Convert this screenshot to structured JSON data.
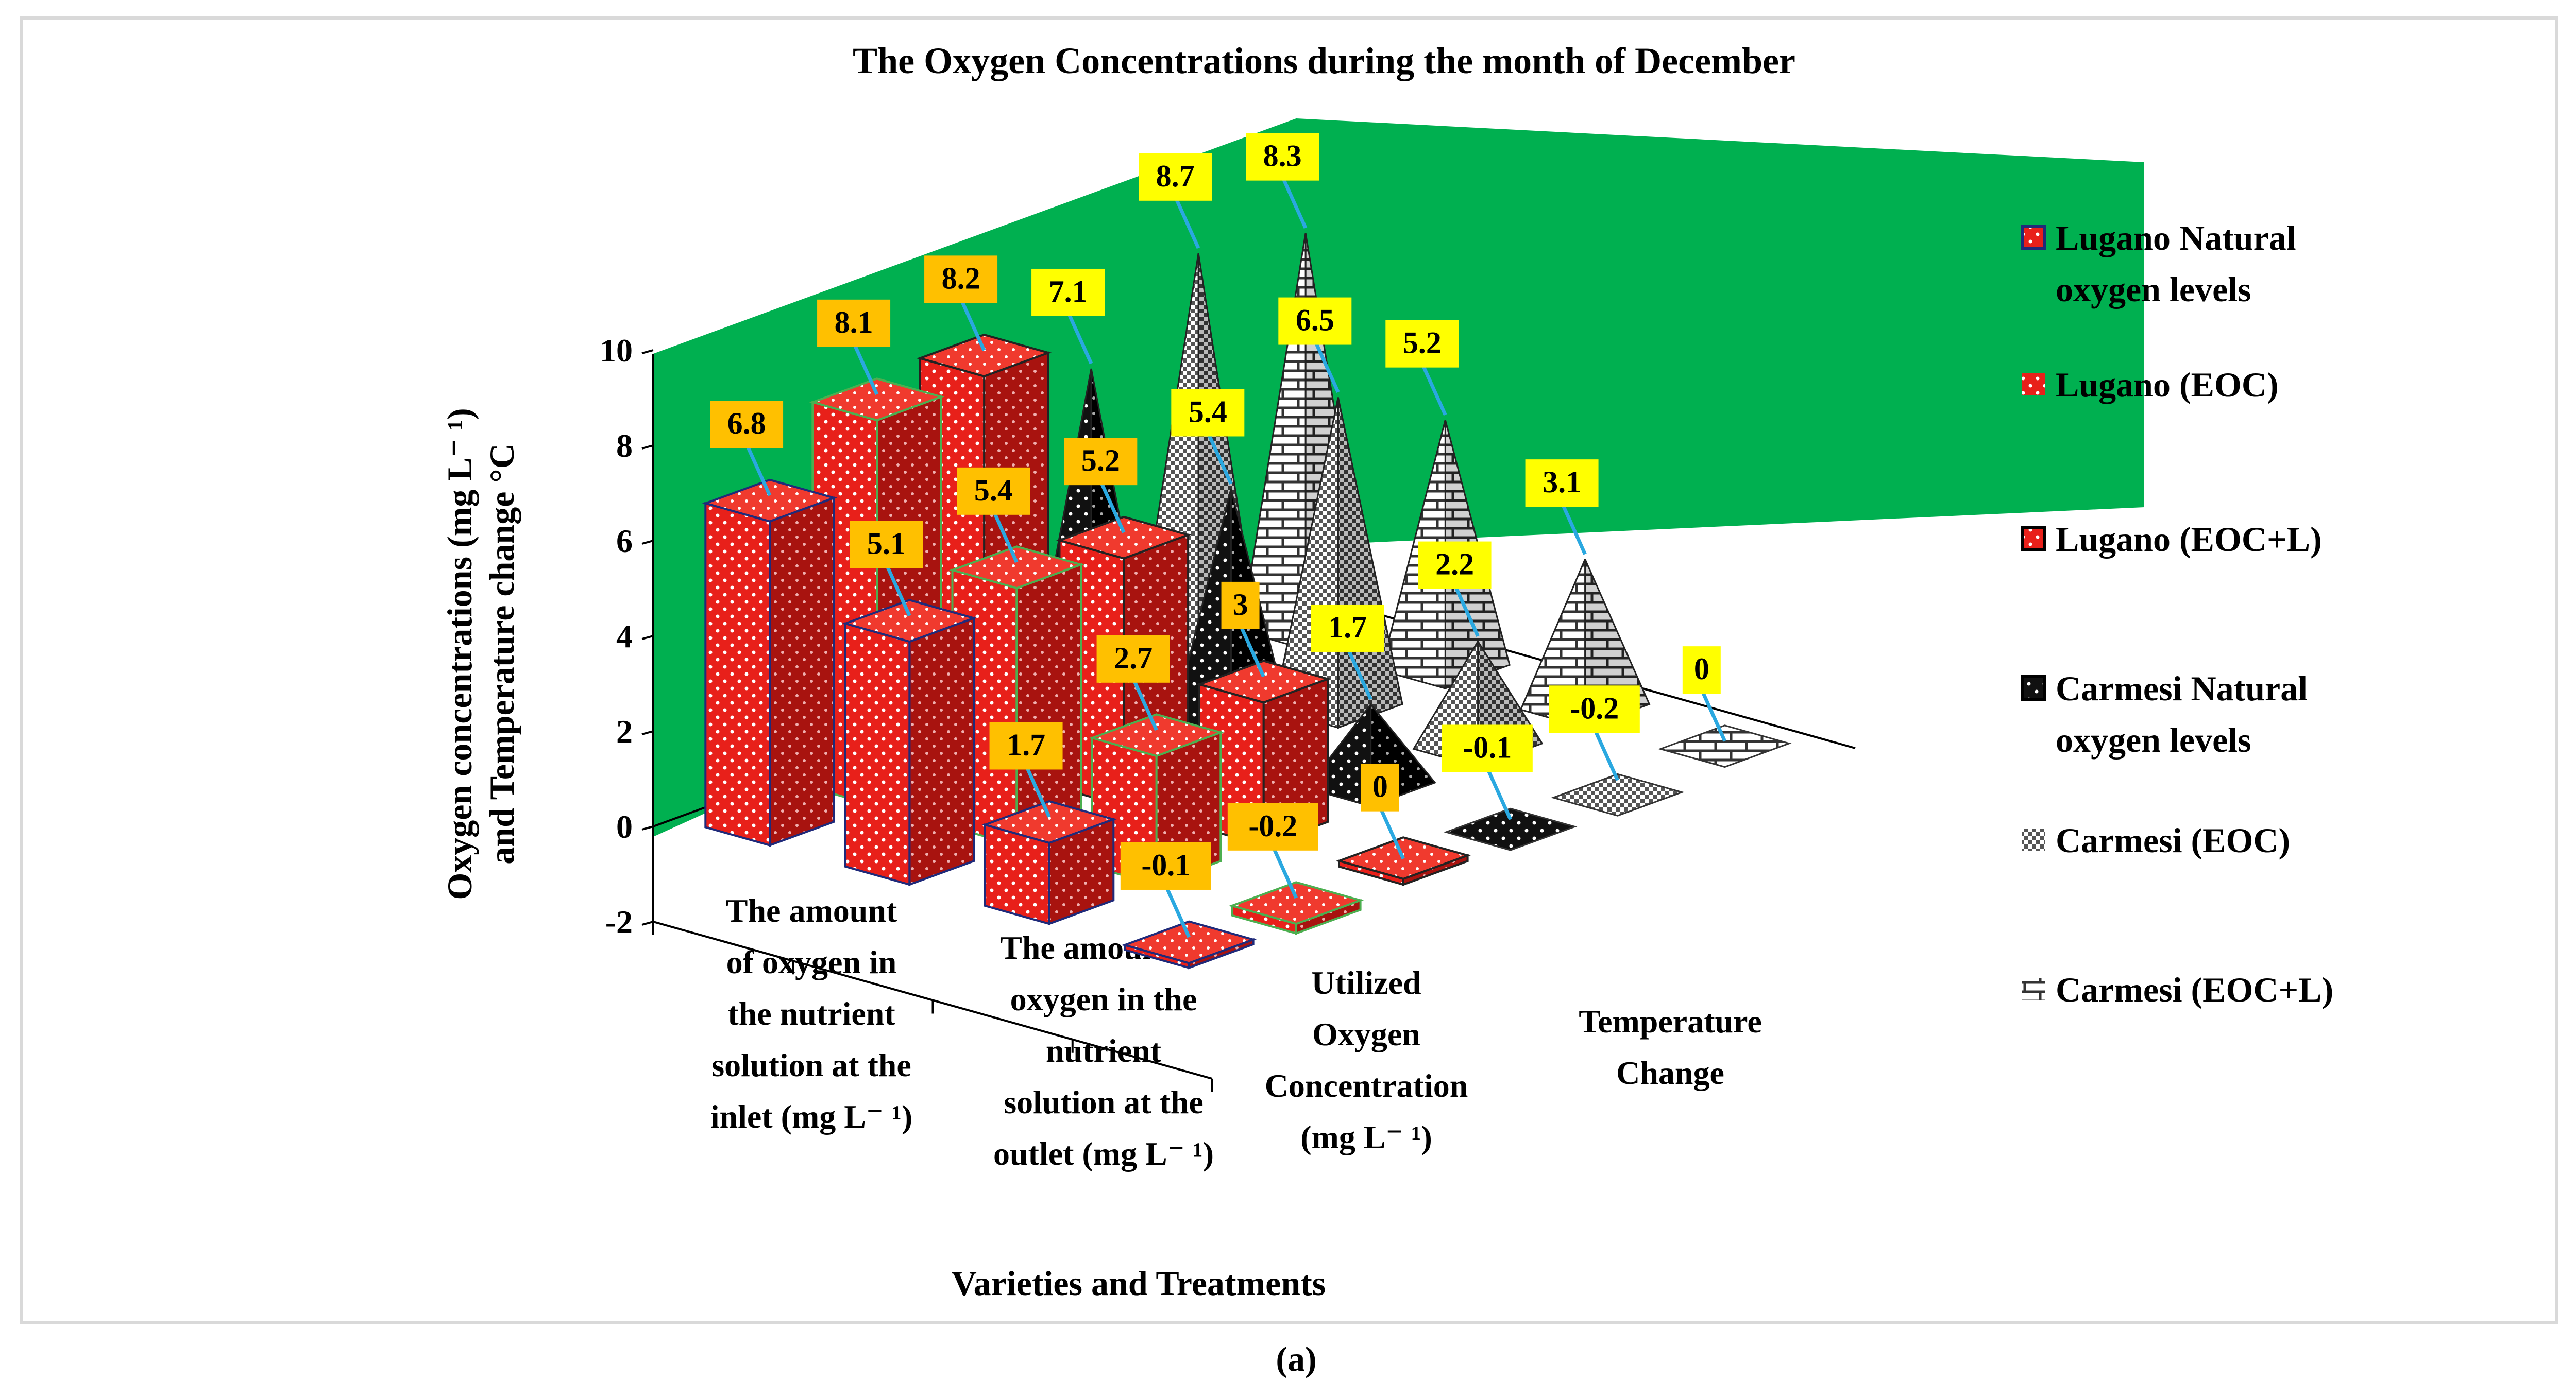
{
  "figure_label": "(a)",
  "chart_data": {
    "type": "bar",
    "variant": "3d-column",
    "title": "The Oxygen Concentrations during the month of December",
    "xlabel": "Varieties and Treatments",
    "ylabel": [
      "Oxygen  concentrations  (mg L⁻ ¹)",
      "and Temperature change °C"
    ],
    "ylim": [
      -2,
      10
    ],
    "yticks": [
      "10",
      "8",
      "6",
      "4",
      "2",
      "0",
      "-2"
    ],
    "categories": [
      [
        "The amount",
        "of oxygen in",
        "the nutrient",
        "solution at the",
        "inlet (mg L⁻ ¹)"
      ],
      [
        "The amount of",
        "oxygen in the",
        "nutrient",
        "solution at the",
        "outlet (mg L⁻ ¹)"
      ],
      [
        "Utilized",
        "Oxygen",
        "Concentration",
        "(mg L⁻ ¹)"
      ],
      [
        "Temperature",
        "Change"
      ]
    ],
    "series": [
      {
        "name": "Lugano Natural oxygen levels",
        "legend_lines": [
          "Lugano Natural",
          "oxygen levels"
        ],
        "values": [
          6.8,
          5.1,
          1.7,
          -0.1
        ],
        "labels": [
          "6.8",
          "5.1",
          "1.7",
          "-0.1"
        ],
        "shape": "box",
        "fill": "#e8201a",
        "edge": "#1f2a7a",
        "label_bg": "#ffc000"
      },
      {
        "name": "Lugano  (EOC)",
        "legend_lines": [
          "Lugano  (EOC)"
        ],
        "values": [
          8.1,
          5.4,
          2.7,
          -0.2
        ],
        "labels": [
          "8.1",
          "5.4",
          "2.7",
          "-0.2"
        ],
        "shape": "box",
        "fill": "#e8201a",
        "edge": "#4caf50",
        "label_bg": "#ffc000"
      },
      {
        "name": "Lugano (EOC+L)",
        "legend_lines": [
          "Lugano (EOC+L)"
        ],
        "values": [
          8.2,
          5.2,
          3.0,
          0
        ],
        "labels": [
          "8.2",
          "5.2",
          "3",
          "0"
        ],
        "shape": "box",
        "fill": "#e8201a",
        "edge": "#222222",
        "label_bg": "#ffc000"
      },
      {
        "name": "Carmesi Natural oxygen levels",
        "legend_lines": [
          "Carmesi Natural",
          "oxygen levels"
        ],
        "values": [
          7.1,
          5.4,
          1.7,
          -0.1
        ],
        "labels": [
          "7.1",
          "5.4",
          "1.7",
          "-0.1"
        ],
        "shape": "pyramid",
        "fill": "#111111",
        "edge": "#000000",
        "label_bg": "#ffff00"
      },
      {
        "name": "Carmesi  (EOC)",
        "legend_lines": [
          "Carmesi  (EOC)"
        ],
        "values": [
          8.7,
          6.5,
          2.2,
          -0.2
        ],
        "labels": [
          "8.7",
          "6.5",
          "2.2",
          "-0.2"
        ],
        "shape": "pyramid",
        "fill": "#9a9a9a",
        "edge": "#555555",
        "label_bg": "#ffff00"
      },
      {
        "name": "Carmesi (EOC+L)",
        "legend_lines": [
          "Carmesi (EOC+L)"
        ],
        "values": [
          8.3,
          5.2,
          3.1,
          0
        ],
        "labels": [
          "8.3",
          "5.2",
          "3.1",
          "0"
        ],
        "shape": "pyramid",
        "fill": "#f2f2f2",
        "edge": "#555555",
        "label_bg": "#ffff00"
      }
    ],
    "wall_color": "#00b050",
    "legend_position": "right"
  }
}
